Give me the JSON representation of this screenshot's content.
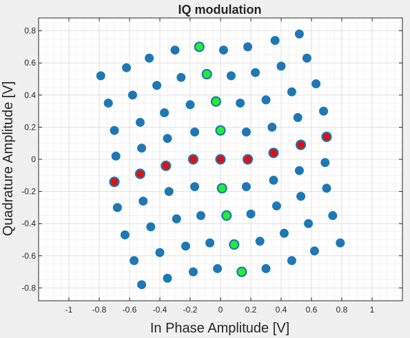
{
  "chart_data": {
    "type": "scatter",
    "title": "IQ modulation",
    "xlabel": "In Phase Amplitude [V]",
    "ylabel": "Quadrature Amplitude [V]",
    "xlim": [
      -1.2,
      1.2
    ],
    "ylim": [
      -0.88,
      0.88
    ],
    "xticks": [
      -1,
      -0.8,
      -0.6,
      -0.4,
      -0.2,
      0,
      0.2,
      0.4,
      0.6,
      0.8,
      1
    ],
    "xtick_labels": [
      "-1",
      "-0.8",
      "-0.6",
      "-0.4",
      "-0.2",
      "0",
      "0.2",
      "0.4",
      "0.6",
      "0.8",
      "1"
    ],
    "yticks": [
      -0.8,
      -0.6,
      -0.4,
      -0.2,
      0,
      0.2,
      0.4,
      0.6,
      0.8
    ],
    "ytick_labels": [
      "-0.8",
      "-0.6",
      "-0.4",
      "-0.2",
      "0",
      "0.2",
      "0.4",
      "0.6",
      "0.8"
    ],
    "grid": true,
    "minor_grid": true,
    "colors": {
      "blue": "#1f77b4",
      "green": "#22ee33",
      "red": "#dd1111",
      "axes_bg": "#ffffff",
      "figure_bg": "#f0f0f0"
    },
    "series": [
      {
        "color_key": "blue",
        "points": [
          [
            0.52,
            0.78
          ],
          [
            0.36,
            0.74
          ],
          [
            0.18,
            0.7
          ],
          [
            0.02,
            0.68
          ],
          [
            -0.3,
            0.68
          ],
          [
            -0.47,
            0.63
          ],
          [
            -0.62,
            0.57
          ],
          [
            -0.79,
            0.52
          ],
          [
            0.57,
            0.63
          ],
          [
            0.4,
            0.58
          ],
          [
            0.23,
            0.54
          ],
          [
            0.07,
            0.52
          ],
          [
            -0.26,
            0.51
          ],
          [
            -0.42,
            0.46
          ],
          [
            -0.58,
            0.4
          ],
          [
            -0.74,
            0.35
          ],
          [
            0.63,
            0.47
          ],
          [
            0.47,
            0.42
          ],
          [
            0.3,
            0.37
          ],
          [
            0.13,
            0.35
          ],
          [
            -0.2,
            0.34
          ],
          [
            -0.37,
            0.29
          ],
          [
            -0.53,
            0.23
          ],
          [
            -0.7,
            0.18
          ],
          [
            0.68,
            0.3
          ],
          [
            0.51,
            0.26
          ],
          [
            0.34,
            0.2
          ],
          [
            0.17,
            0.17
          ],
          [
            -0.17,
            0.17
          ],
          [
            -0.35,
            0.13
          ],
          [
            -0.52,
            0.07
          ],
          [
            -0.69,
            0.02
          ],
          [
            0.69,
            -0.02
          ],
          [
            0.52,
            -0.07
          ],
          [
            0.35,
            -0.13
          ],
          [
            0.17,
            -0.17
          ],
          [
            -0.17,
            -0.17
          ],
          [
            -0.34,
            -0.2
          ],
          [
            -0.51,
            -0.26
          ],
          [
            -0.68,
            -0.3
          ],
          [
            0.7,
            -0.18
          ],
          [
            0.53,
            -0.23
          ],
          [
            0.37,
            -0.29
          ],
          [
            0.2,
            -0.34
          ],
          [
            -0.13,
            -0.35
          ],
          [
            -0.29,
            -0.37
          ],
          [
            -0.46,
            -0.42
          ],
          [
            -0.63,
            -0.47
          ],
          [
            0.74,
            -0.35
          ],
          [
            0.58,
            -0.4
          ],
          [
            0.42,
            -0.46
          ],
          [
            0.26,
            -0.51
          ],
          [
            -0.07,
            -0.52
          ],
          [
            -0.23,
            -0.54
          ],
          [
            -0.4,
            -0.58
          ],
          [
            -0.57,
            -0.63
          ],
          [
            0.79,
            -0.52
          ],
          [
            0.62,
            -0.57
          ],
          [
            0.47,
            -0.63
          ],
          [
            0.3,
            -0.68
          ],
          [
            -0.02,
            -0.68
          ],
          [
            -0.18,
            -0.7
          ],
          [
            -0.35,
            -0.74
          ],
          [
            -0.52,
            -0.78
          ]
        ]
      },
      {
        "color_key": "green",
        "points": [
          [
            -0.14,
            0.7
          ],
          [
            -0.09,
            0.53
          ],
          [
            -0.03,
            0.36
          ],
          [
            0.0,
            0.18
          ],
          [
            0.01,
            -0.18
          ],
          [
            0.04,
            -0.35
          ],
          [
            0.09,
            -0.53
          ],
          [
            0.14,
            -0.7
          ]
        ]
      },
      {
        "color_key": "red",
        "points": [
          [
            0.7,
            0.14
          ],
          [
            0.53,
            0.09
          ],
          [
            0.35,
            0.04
          ],
          [
            0.18,
            0.0
          ],
          [
            0.0,
            0.0
          ],
          [
            -0.18,
            0.0
          ],
          [
            -0.36,
            -0.04
          ],
          [
            -0.53,
            -0.09
          ],
          [
            -0.7,
            -0.14
          ]
        ]
      }
    ]
  }
}
